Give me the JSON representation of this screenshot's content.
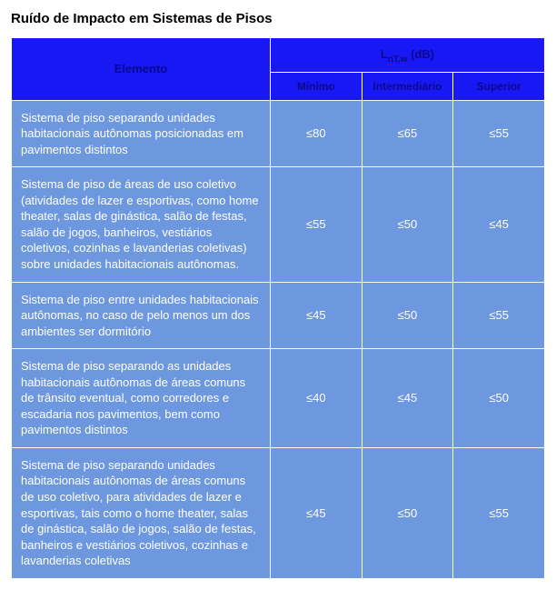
{
  "title": "Ruído de Impacto em Sistemas de Pisos",
  "colors": {
    "header_bg": "#1818f5",
    "header_text": "#0a0a8a",
    "row_bg": "#6d98e0",
    "row_text": "#ffffff",
    "border": "#ffffff",
    "underline": "#cc0000"
  },
  "header": {
    "element": "Elemento",
    "measure_main": "L",
    "measure_sub1": "nT,w",
    "measure_unit": " (dB)",
    "sub": {
      "min": "Mínimo",
      "int": "Intermediário",
      "sup": "Superior"
    }
  },
  "rows": [
    {
      "desc": "Sistema de piso separando unidades habitacionais autônomas posicionadas em pavimentos distintos",
      "min": "≤80",
      "int": "≤65",
      "sup": "≤55"
    },
    {
      "desc": "Sistema de piso de áreas de uso coletivo (atividades de lazer e esportivas, como home theater, salas de ginástica, salão de festas, salão de jogos, banheiros, vestiários coletivos, cozinhas e lavanderias coletivas) sobre unidades habitacionais autônomas.",
      "min": "≤55",
      "int": "≤50",
      "sup": "≤45"
    },
    {
      "desc": "Sistema de piso entre unidades habitacionais autônomas, no caso de pelo menos um dos ambientes ser dormitório",
      "min": "≤45",
      "int": "≤50",
      "sup": "≤55"
    },
    {
      "desc": "Sistema de piso separando as unidades habitacionais autônomas de áreas comuns de trânsito eventual, como corredores e escadaria nos pavimentos, bem como pavimentos distintos",
      "min": "≤40",
      "int": "≤45",
      "sup": "≤50"
    },
    {
      "desc": "Sistema de piso separando unidades habitacionais autônomas de áreas comuns de uso coletivo, para atividades de lazer e esportivas, tais como o home theater, salas de ginástica, salão de jogos, salão de festas, banheiros e vestiários coletivos, cozinhas e lavanderias coletivas",
      "min": "≤45",
      "int": "≤50",
      "sup": "≤55"
    }
  ]
}
